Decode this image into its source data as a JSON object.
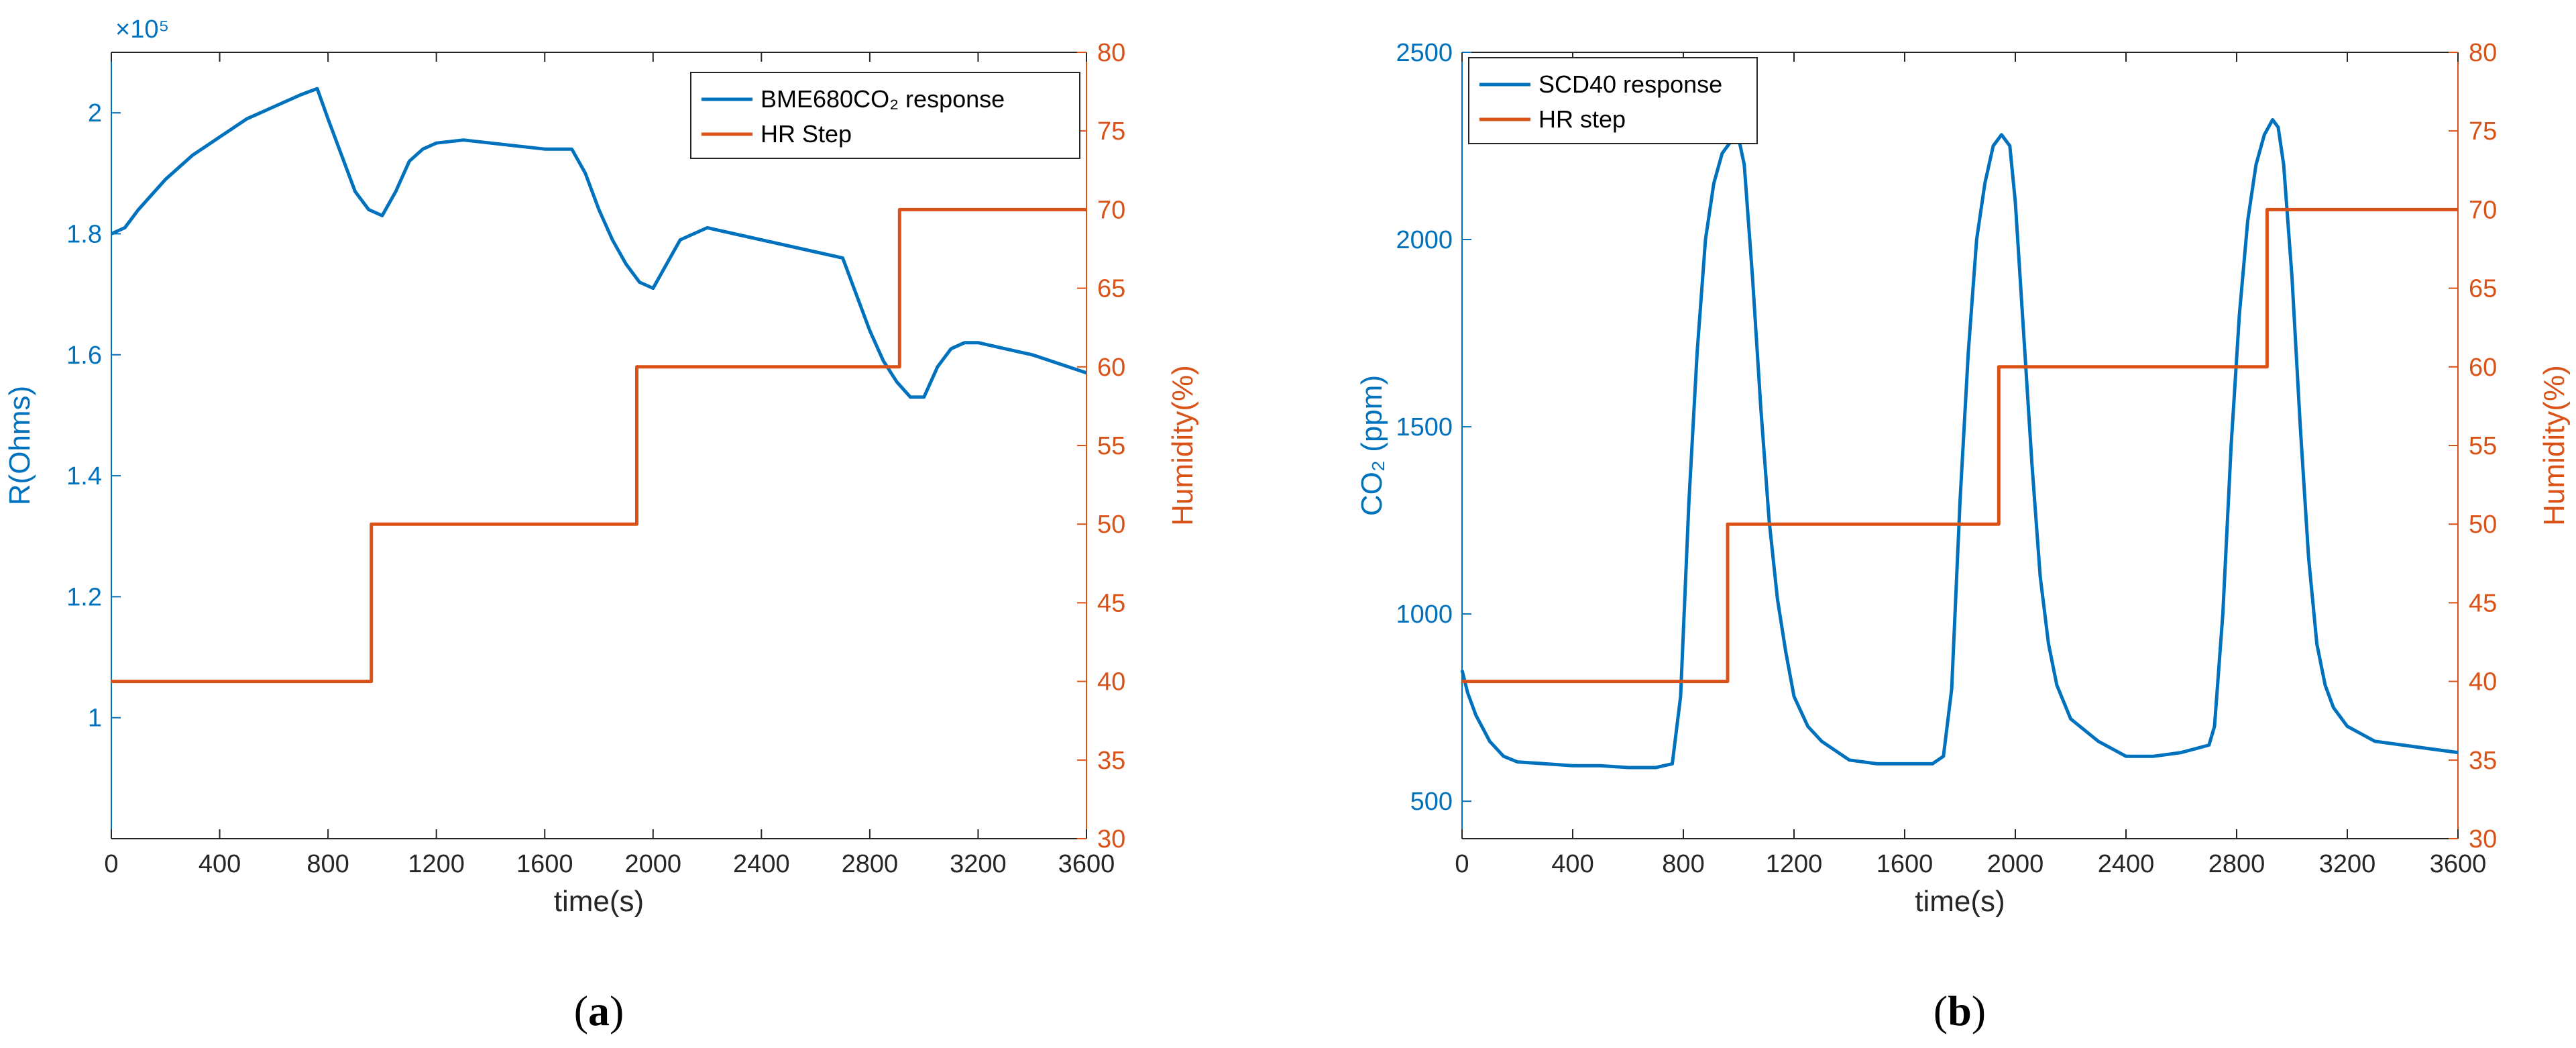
{
  "colors": {
    "left_axis": "#0072BD",
    "right_axis": "#D95319",
    "axes_box": "#262626",
    "background": "#ffffff"
  },
  "chart_data": [
    {
      "type": "line",
      "panel_label": "a",
      "xlabel": "time(s)",
      "ylabel_left": "R(Ohms)",
      "ylabel_right": "Humidity(%)",
      "exponent_label": "×10⁵",
      "xlim": [
        0,
        3600
      ],
      "xticks": [
        0,
        400,
        800,
        1200,
        1600,
        2000,
        2400,
        2800,
        3200,
        3600
      ],
      "ylim_left": [
        0.8,
        2.1
      ],
      "yticks_left": [
        1,
        1.2,
        1.4,
        1.6,
        1.8,
        2
      ],
      "ylim_right": [
        30,
        80
      ],
      "yticks_right": [
        30,
        35,
        40,
        45,
        50,
        55,
        60,
        65,
        70,
        75,
        80
      ],
      "legend": [
        {
          "label": "BME680CO₂ response",
          "color": "#0072BD"
        },
        {
          "label": "HR Step",
          "color": "#D95319"
        }
      ],
      "series": [
        {
          "name": "BME680CO₂ response",
          "axis": "left",
          "units": "x10^5 Ohms",
          "x": [
            0,
            50,
            100,
            200,
            300,
            400,
            500,
            600,
            700,
            760,
            800,
            850,
            900,
            950,
            1000,
            1050,
            1100,
            1150,
            1200,
            1300,
            1400,
            1500,
            1600,
            1700,
            1750,
            1800,
            1850,
            1900,
            1950,
            2000,
            2050,
            2100,
            2200,
            2300,
            2400,
            2500,
            2600,
            2700,
            2750,
            2800,
            2850,
            2900,
            2950,
            3000,
            3050,
            3100,
            3150,
            3200,
            3300,
            3400,
            3500,
            3600
          ],
          "y": [
            1.8,
            1.81,
            1.84,
            1.89,
            1.93,
            1.96,
            1.99,
            2.01,
            2.03,
            2.04,
            1.99,
            1.93,
            1.87,
            1.84,
            1.83,
            1.87,
            1.92,
            1.94,
            1.95,
            1.955,
            1.95,
            1.945,
            1.94,
            1.94,
            1.9,
            1.84,
            1.79,
            1.75,
            1.72,
            1.71,
            1.75,
            1.79,
            1.81,
            1.8,
            1.79,
            1.78,
            1.77,
            1.76,
            1.7,
            1.64,
            1.59,
            1.555,
            1.53,
            1.53,
            1.58,
            1.61,
            1.62,
            1.62,
            1.61,
            1.6,
            1.585,
            1.57
          ]
        },
        {
          "name": "HR Step",
          "axis": "right",
          "step": true,
          "x": [
            0,
            960,
            960,
            1940,
            1940,
            2910,
            2910,
            3600
          ],
          "y": [
            40,
            40,
            50,
            50,
            60,
            60,
            70,
            70
          ]
        }
      ]
    },
    {
      "type": "line",
      "panel_label": "b",
      "xlabel": "time(s)",
      "ylabel_left": "CO₂ (ppm)",
      "ylabel_right": "Humidity(%)",
      "xlim": [
        0,
        3600
      ],
      "xticks": [
        0,
        400,
        800,
        1200,
        1600,
        2000,
        2400,
        2800,
        3200,
        3600
      ],
      "ylim_left": [
        400,
        2500
      ],
      "yticks_left": [
        500,
        1000,
        1500,
        2000,
        2500
      ],
      "ylim_right": [
        30,
        80
      ],
      "yticks_right": [
        30,
        35,
        40,
        45,
        50,
        55,
        60,
        65,
        70,
        75,
        80
      ],
      "legend": [
        {
          "label": "SCD40 response",
          "color": "#0072BD"
        },
        {
          "label": "HR step",
          "color": "#D95319"
        }
      ],
      "series": [
        {
          "name": "SCD40 response",
          "axis": "left",
          "units": "ppm",
          "x": [
            0,
            20,
            50,
            100,
            150,
            200,
            300,
            400,
            500,
            600,
            700,
            760,
            790,
            820,
            850,
            880,
            910,
            940,
            970,
            1000,
            1020,
            1050,
            1080,
            1110,
            1140,
            1170,
            1200,
            1250,
            1300,
            1400,
            1500,
            1600,
            1700,
            1740,
            1770,
            1800,
            1830,
            1860,
            1890,
            1920,
            1950,
            1980,
            2000,
            2030,
            2060,
            2090,
            2120,
            2150,
            2200,
            2300,
            2400,
            2500,
            2600,
            2700,
            2720,
            2750,
            2780,
            2810,
            2840,
            2870,
            2900,
            2930,
            2950,
            2970,
            3000,
            3030,
            3060,
            3090,
            3120,
            3150,
            3200,
            3300,
            3400,
            3500,
            3600
          ],
          "y": [
            850,
            790,
            730,
            660,
            620,
            605,
            600,
            595,
            595,
            590,
            590,
            600,
            780,
            1300,
            1700,
            2000,
            2150,
            2230,
            2260,
            2270,
            2200,
            1900,
            1550,
            1250,
            1040,
            900,
            780,
            700,
            660,
            610,
            600,
            600,
            600,
            620,
            800,
            1300,
            1700,
            2000,
            2150,
            2250,
            2280,
            2250,
            2100,
            1750,
            1400,
            1100,
            920,
            810,
            720,
            660,
            620,
            620,
            630,
            650,
            700,
            1000,
            1450,
            1800,
            2050,
            2200,
            2280,
            2320,
            2300,
            2200,
            1900,
            1500,
            1150,
            920,
            810,
            750,
            700,
            660,
            650,
            640,
            630
          ]
        },
        {
          "name": "HR step",
          "axis": "right",
          "step": true,
          "x": [
            0,
            960,
            960,
            1940,
            1940,
            2910,
            2910,
            3600
          ],
          "y": [
            40,
            40,
            50,
            50,
            60,
            60,
            70,
            70
          ]
        }
      ]
    }
  ]
}
